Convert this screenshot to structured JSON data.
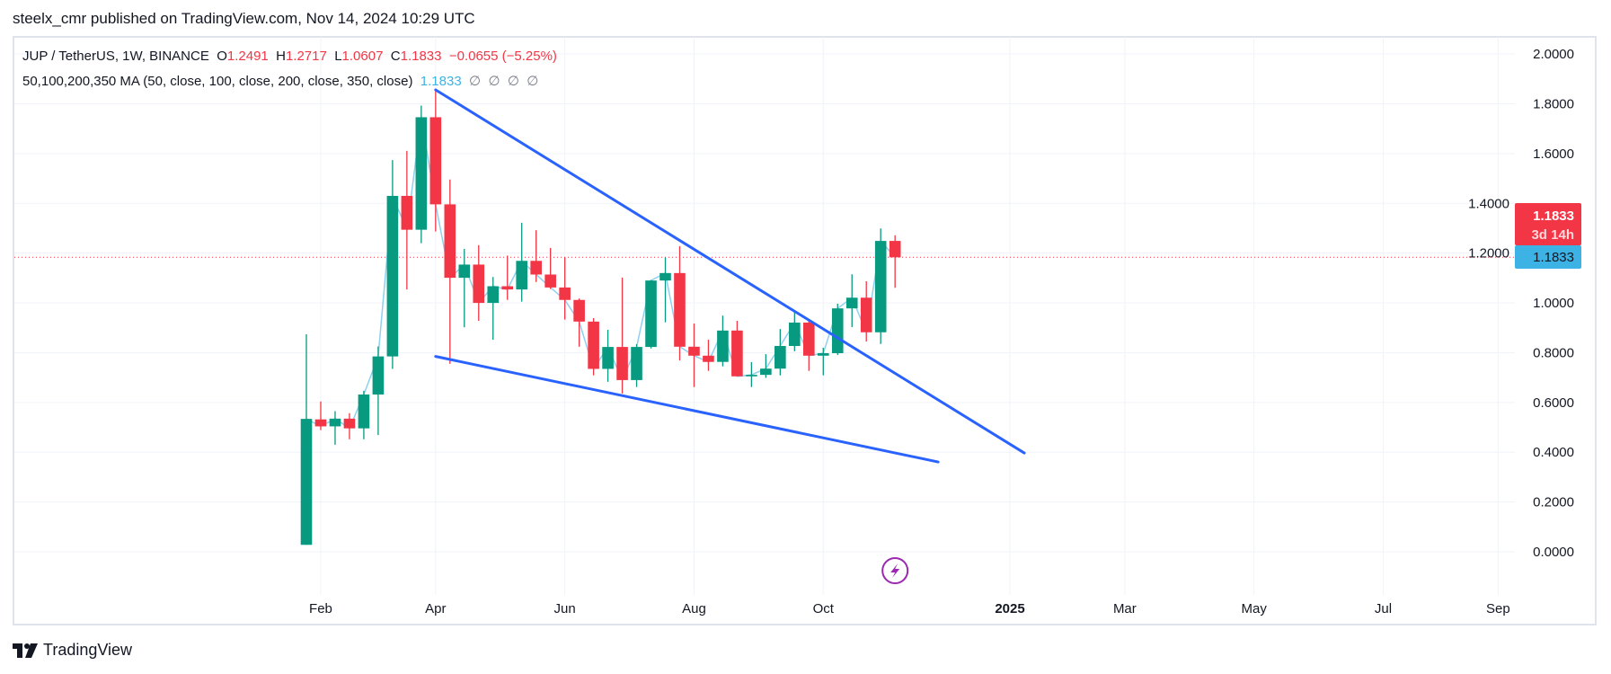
{
  "header": {
    "publisher_line": "steelx_cmr published on TradingView.com, Nov 14, 2024 10:29 UTC"
  },
  "legend": {
    "symbol": "JUP / TetherUS, 1W, BINANCE",
    "o_label": "O",
    "o": "1.2491",
    "h_label": "H",
    "h": "1.2717",
    "l_label": "L",
    "l": "1.0607",
    "c_label": "C",
    "c": "1.1833",
    "change": "−0.0655 (−5.25%)",
    "ma_title": "50,100,200,350 MA (50, close, 100, close, 200, close, 350, close)",
    "ma_value": "1.1833",
    "ma_empty": [
      "∅",
      "∅",
      "∅",
      "∅"
    ]
  },
  "price_badge": {
    "price": "1.1833",
    "countdown": "3d 14h"
  },
  "ma_badge": {
    "value": "1.1833"
  },
  "footer": {
    "logo_text": "TradingView"
  },
  "colors": {
    "up": "#089981",
    "down": "#f23645",
    "trendline": "#2962ff",
    "ma_line": "#8fd0ee",
    "ma_badge": "#3db2e4",
    "grid": "#f0f3fa",
    "event_icon": "#9c27b0"
  },
  "chart_data": {
    "type": "candlestick",
    "interval": "1W",
    "first_week": "2024-01-29",
    "ylim": [
      -0.166,
      2.069
    ],
    "y_ticks": [
      "0.0000",
      "0.2000",
      "0.4000",
      "0.6000",
      "0.8000",
      "1.0000",
      "1.2000",
      "1.4000",
      "1.6000",
      "1.8000",
      "2.0000"
    ],
    "x_ticks": [
      {
        "label": "Feb",
        "date": "2024-02-05"
      },
      {
        "label": "Apr",
        "date": "2024-04-01"
      },
      {
        "label": "Jun",
        "date": "2024-06-03"
      },
      {
        "label": "Aug",
        "date": "2024-08-05"
      },
      {
        "label": "Oct",
        "date": "2024-10-07"
      },
      {
        "label": "2025",
        "date": "2025-01-06"
      },
      {
        "label": "Mar",
        "date": "2025-03-03"
      },
      {
        "label": "May",
        "date": "2025-05-05"
      },
      {
        "label": "Jul",
        "date": "2025-07-07"
      },
      {
        "label": "Sep",
        "date": "2025-09-01"
      }
    ],
    "candles_ohlc": [
      [
        0.028,
        0.874,
        0.028,
        0.534
      ],
      [
        0.532,
        0.604,
        0.489,
        0.504
      ],
      [
        0.504,
        0.565,
        0.43,
        0.535
      ],
      [
        0.535,
        0.557,
        0.452,
        0.496
      ],
      [
        0.496,
        0.647,
        0.452,
        0.632
      ],
      [
        0.632,
        0.825,
        0.469,
        0.785
      ],
      [
        0.785,
        1.574,
        0.735,
        1.43
      ],
      [
        1.43,
        1.611,
        1.054,
        1.294
      ],
      [
        1.294,
        1.793,
        1.24,
        1.746
      ],
      [
        1.746,
        1.858,
        1.287,
        1.396
      ],
      [
        1.396,
        1.496,
        0.755,
        1.101
      ],
      [
        1.101,
        1.217,
        0.902,
        1.154
      ],
      [
        1.154,
        1.232,
        0.928,
        1.0
      ],
      [
        1.0,
        1.104,
        0.852,
        1.067
      ],
      [
        1.067,
        1.19,
        1.012,
        1.054
      ],
      [
        1.054,
        1.322,
        1.005,
        1.169
      ],
      [
        1.169,
        1.292,
        1.084,
        1.114
      ],
      [
        1.114,
        1.221,
        1.056,
        1.062
      ],
      [
        1.062,
        1.184,
        0.933,
        1.012
      ],
      [
        1.012,
        1.018,
        0.824,
        0.925
      ],
      [
        0.925,
        0.939,
        0.709,
        0.735
      ],
      [
        0.735,
        0.892,
        0.683,
        0.823
      ],
      [
        0.823,
        1.102,
        0.636,
        0.69
      ],
      [
        0.69,
        0.834,
        0.662,
        0.823
      ],
      [
        0.823,
        1.092,
        0.817,
        1.09
      ],
      [
        1.09,
        1.183,
        0.922,
        1.12
      ],
      [
        1.12,
        1.228,
        0.769,
        0.824
      ],
      [
        0.824,
        0.917,
        0.662,
        0.788
      ],
      [
        0.788,
        0.852,
        0.727,
        0.763
      ],
      [
        0.763,
        0.949,
        0.745,
        0.889
      ],
      [
        0.889,
        0.928,
        0.705,
        0.705
      ],
      [
        0.705,
        0.762,
        0.662,
        0.711
      ],
      [
        0.711,
        0.794,
        0.699,
        0.736
      ],
      [
        0.736,
        0.895,
        0.709,
        0.827
      ],
      [
        0.827,
        0.97,
        0.806,
        0.921
      ],
      [
        0.921,
        0.928,
        0.727,
        0.788
      ],
      [
        0.788,
        0.82,
        0.709,
        0.798
      ],
      [
        0.798,
        0.997,
        0.791,
        0.978
      ],
      [
        0.978,
        1.115,
        0.903,
        1.021
      ],
      [
        1.021,
        1.087,
        0.845,
        0.882
      ],
      [
        0.882,
        1.299,
        0.835,
        1.249
      ],
      [
        1.2491,
        1.2717,
        1.0607,
        1.1833
      ]
    ],
    "trendlines": [
      {
        "from": {
          "week": 9,
          "price": 1.856
        },
        "to": {
          "week": 50,
          "price": 0.397
        }
      },
      {
        "from": {
          "week": 9,
          "price": 0.785
        },
        "to": {
          "week": 44,
          "price": 0.361
        }
      }
    ],
    "last_price": 1.1833,
    "event_marker": {
      "week": 41,
      "icon": "lightning-icon"
    }
  }
}
